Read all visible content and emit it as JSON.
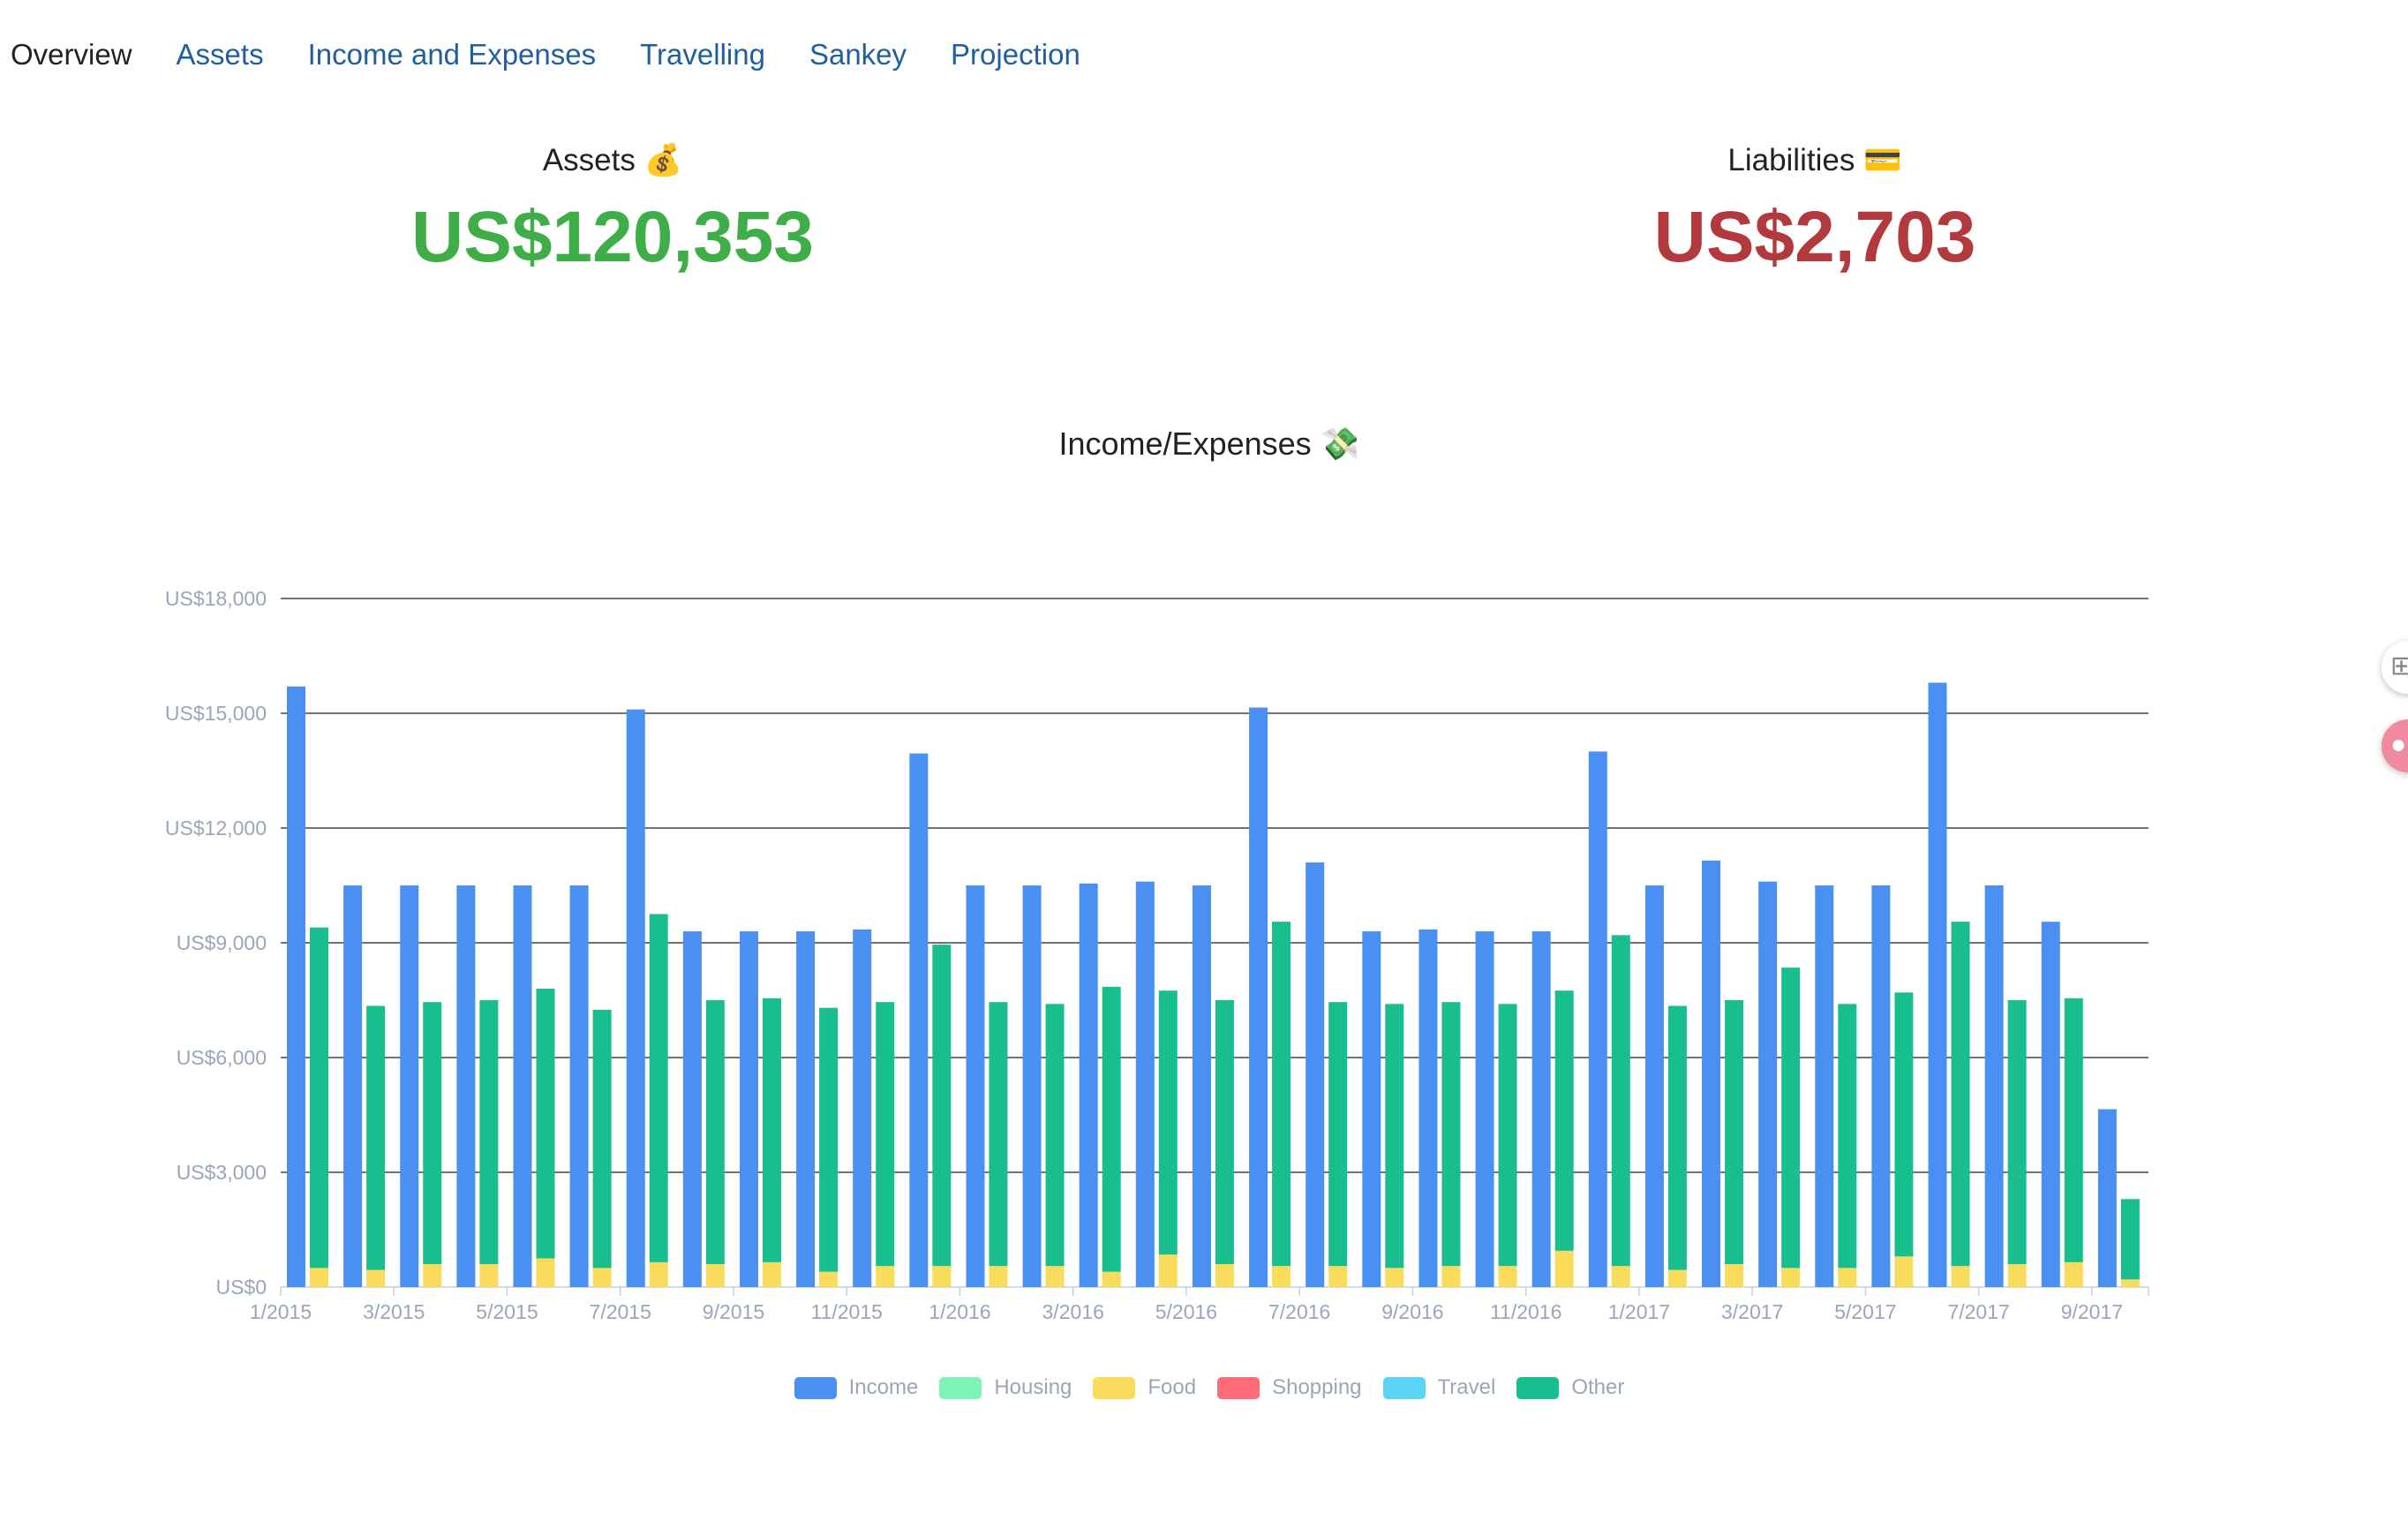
{
  "nav": {
    "items": [
      {
        "label": "Overview",
        "active": true
      },
      {
        "label": "Assets",
        "active": false
      },
      {
        "label": "Income and Expenses",
        "active": false
      },
      {
        "label": "Travelling",
        "active": false
      },
      {
        "label": "Sankey",
        "active": false
      },
      {
        "label": "Projection",
        "active": false
      }
    ]
  },
  "assets": {
    "title": "Assets 💰",
    "value": "US$120,353",
    "color": "#3fae49"
  },
  "liabilities": {
    "title": "Liabilities 💳",
    "value": "US$2,703",
    "color": "#b23a3f"
  },
  "chart_data": {
    "type": "bar",
    "title": "Income/Expenses 💸",
    "categories": [
      "1/2015",
      "2/2015",
      "3/2015",
      "4/2015",
      "5/2015",
      "6/2015",
      "7/2015",
      "8/2015",
      "9/2015",
      "10/2015",
      "11/2015",
      "12/2015",
      "1/2016",
      "2/2016",
      "3/2016",
      "4/2016",
      "5/2016",
      "6/2016",
      "7/2016",
      "8/2016",
      "9/2016",
      "10/2016",
      "11/2016",
      "12/2016",
      "1/2017",
      "2/2017",
      "3/2017",
      "4/2017",
      "5/2017",
      "6/2017",
      "7/2017",
      "8/2017",
      "9/2017"
    ],
    "x_tick_labels": [
      "1/2015",
      "3/2015",
      "5/2015",
      "7/2015",
      "9/2015",
      "11/2015",
      "1/2016",
      "3/2016",
      "5/2016",
      "7/2016",
      "9/2016",
      "11/2016",
      "1/2017",
      "3/2017",
      "5/2017",
      "7/2017",
      "9/2017"
    ],
    "y_tick_labels": [
      "US$0",
      "US$3,000",
      "US$6,000",
      "US$9,000",
      "US$12,000",
      "US$15,000",
      "US$18,000"
    ],
    "ylim": [
      0,
      18000
    ],
    "y_ticks": [
      0,
      3000,
      6000,
      9000,
      12000,
      15000,
      18000
    ],
    "grid": true,
    "legend_position": "bottom-center",
    "income": [
      15700,
      10500,
      10500,
      10500,
      10500,
      10500,
      15100,
      9300,
      9300,
      9300,
      9350,
      13950,
      10500,
      10500,
      10550,
      10600,
      10500,
      15150,
      11100,
      9300,
      9350,
      9300,
      9300,
      14000,
      10500,
      11150,
      10600,
      10500,
      10500,
      15800,
      10500,
      9550,
      4650
    ],
    "expense_series": [
      {
        "name": "Housing",
        "color": "#7ef5b6",
        "values": [
          0,
          0,
          0,
          0,
          0,
          0,
          0,
          0,
          0,
          0,
          0,
          0,
          0,
          0,
          0,
          0,
          0,
          0,
          0,
          0,
          0,
          0,
          0,
          0,
          0,
          0,
          0,
          0,
          0,
          0,
          0,
          0,
          0
        ]
      },
      {
        "name": "Food",
        "color": "#f9dc5c",
        "values": [
          500,
          450,
          600,
          600,
          750,
          500,
          650,
          600,
          650,
          400,
          550,
          550,
          550,
          550,
          400,
          850,
          600,
          550,
          550,
          500,
          550,
          550,
          950,
          550,
          450,
          600,
          500,
          500,
          800,
          550,
          600,
          650,
          200
        ]
      },
      {
        "name": "Shopping",
        "color": "#ff6b76",
        "values": [
          0,
          0,
          0,
          0,
          0,
          0,
          0,
          0,
          0,
          0,
          0,
          0,
          0,
          0,
          0,
          0,
          0,
          0,
          0,
          0,
          0,
          0,
          0,
          0,
          0,
          0,
          0,
          0,
          0,
          0,
          0,
          0,
          0
        ]
      },
      {
        "name": "Travel",
        "color": "#5ad4f6",
        "values": [
          0,
          0,
          0,
          0,
          0,
          0,
          0,
          0,
          0,
          0,
          0,
          0,
          0,
          0,
          0,
          0,
          0,
          0,
          0,
          0,
          0,
          0,
          0,
          0,
          0,
          0,
          0,
          0,
          0,
          0,
          0,
          0,
          0
        ]
      },
      {
        "name": "Other",
        "color": "#19be8f",
        "values": [
          8900,
          6900,
          6850,
          6900,
          7050,
          6750,
          9100,
          6900,
          6900,
          6900,
          6900,
          8400,
          6900,
          6850,
          7450,
          6900,
          6900,
          9000,
          6900,
          6900,
          6900,
          6850,
          6800,
          8650,
          6900,
          6900,
          7850,
          6900,
          6900,
          9000,
          6900,
          6900,
          2100
        ]
      }
    ],
    "legend": [
      {
        "label": "Income",
        "color": "#4a90f2"
      },
      {
        "label": "Housing",
        "color": "#7ef5b6"
      },
      {
        "label": "Food",
        "color": "#f9dc5c"
      },
      {
        "label": "Shopping",
        "color": "#ff6b76"
      },
      {
        "label": "Travel",
        "color": "#5ad4f6"
      },
      {
        "label": "Other",
        "color": "#19be8f"
      }
    ]
  }
}
